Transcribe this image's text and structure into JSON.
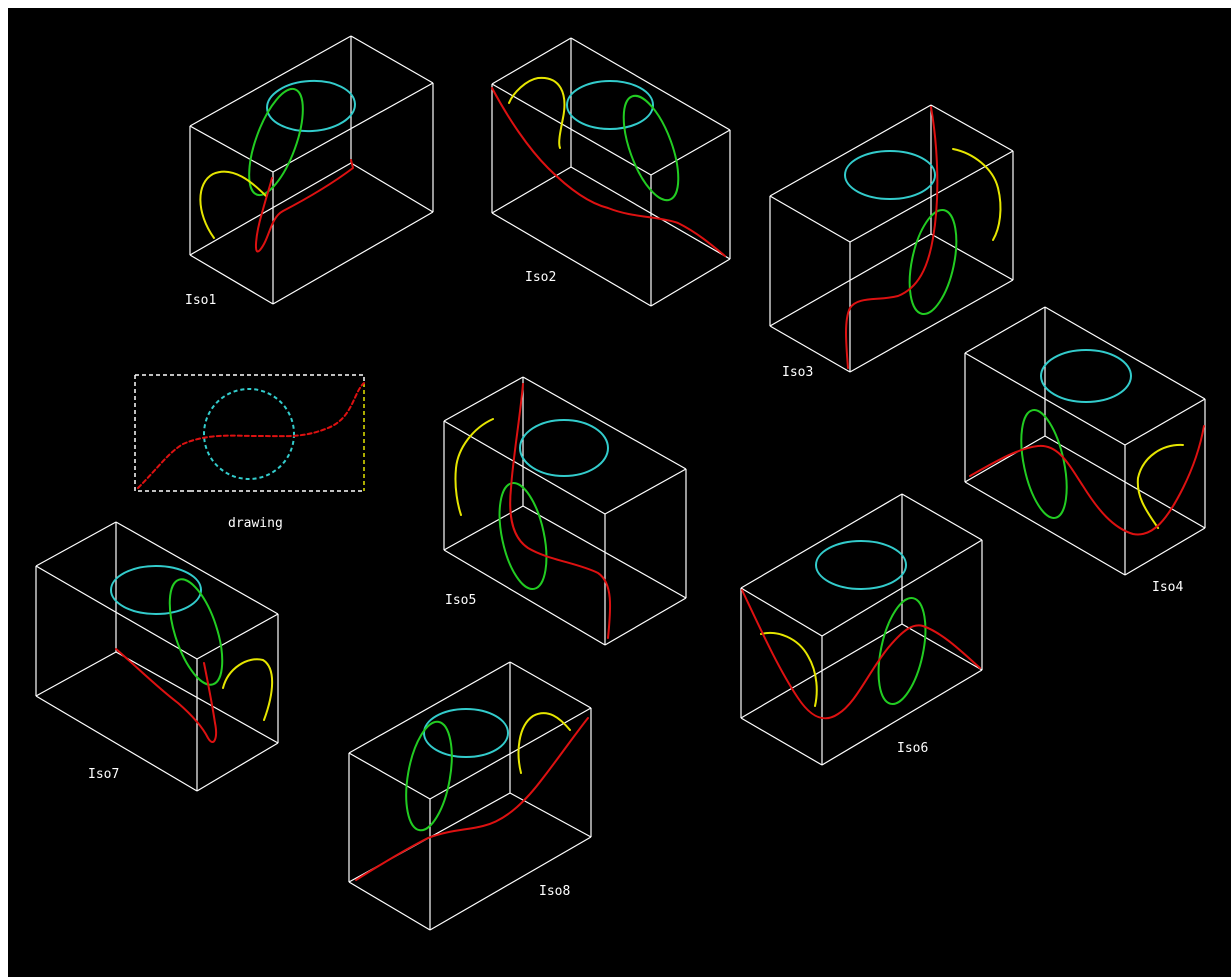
{
  "colors": {
    "background": "#000000",
    "box_edge": "#ffffff",
    "circle": "#33cccc",
    "ellipse_side": "#22cc22",
    "arc": "#e6e600",
    "curve": "#dd1111",
    "label": "#ffffff"
  },
  "labels": {
    "drawing": "drawing",
    "iso1": "Iso1",
    "iso2": "Iso2",
    "iso3": "Iso3",
    "iso4": "Iso4",
    "iso5": "Iso5",
    "iso6": "Iso6",
    "iso7": "Iso7",
    "iso8": "Iso8"
  }
}
